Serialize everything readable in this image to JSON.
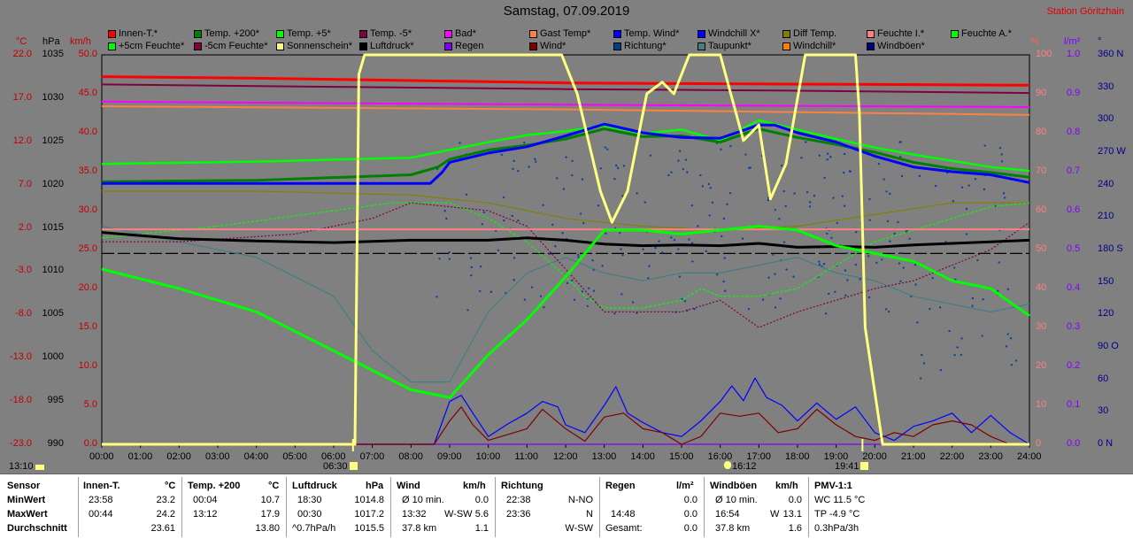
{
  "header": {
    "title": "Samstag, 07.09.2019",
    "station": "Station Göritzhain"
  },
  "axis_headers": {
    "celsius": "°C",
    "hpa": "hPa",
    "kmh": "km/h",
    "percent": "%",
    "lm2": "l/m²",
    "deg": "°"
  },
  "legend": [
    {
      "label": "Innen-T.*",
      "color": "#ff0000"
    },
    {
      "label": "Temp. +200*",
      "color": "#008000"
    },
    {
      "label": "Temp. +5*",
      "color": "#00ff00"
    },
    {
      "label": "Temp. -5*",
      "color": "#800040"
    },
    {
      "label": "Bad*",
      "color": "#ff00ff"
    },
    {
      "label": "Gast Temp*",
      "color": "#ff8040"
    },
    {
      "label": "Temp. Wind*",
      "color": "#0000ff"
    },
    {
      "label": "Windchill X*",
      "color": "#0000ff"
    },
    {
      "label": "Diff Temp.",
      "color": "#808000"
    },
    {
      "label": "Feuchte I.*",
      "color": "#ff8080"
    },
    {
      "label": "Feuchte A.*",
      "color": "#00ff00"
    },
    {
      "label": "+5cm Feuchte*",
      "color": "#00ff00"
    },
    {
      "label": "-5cm Feuchte*",
      "color": "#800040"
    },
    {
      "label": "Sonnenschein*",
      "color": "#ffff80"
    },
    {
      "label": "Luftdruck*",
      "color": "#000000"
    },
    {
      "label": "Regen",
      "color": "#8000ff"
    },
    {
      "label": "Wind*",
      "color": "#800000"
    },
    {
      "label": "Richtung*",
      "color": "#004080"
    },
    {
      "label": "Taupunkt*",
      "color": "#408080"
    },
    {
      "label": "Windchill*",
      "color": "#ff8000"
    },
    {
      "label": "Windböen*",
      "color": "#000080"
    }
  ],
  "chart_data": {
    "type": "line",
    "title": "Samstag, 07.09.2019",
    "x_ticks": [
      "00:00",
      "01:00",
      "02:00",
      "03:00",
      "04:00",
      "05:00",
      "06:00",
      "07:00",
      "08:00",
      "09:00",
      "10:00",
      "11:00",
      "12:00",
      "13:00",
      "14:00",
      "15:00",
      "16:00",
      "17:00",
      "18:00",
      "19:00",
      "20:00",
      "21:00",
      "22:00",
      "23:00",
      "24:00"
    ],
    "xlim": [
      0,
      24
    ],
    "axes": {
      "celsius": {
        "ticks": [
          "22.0",
          "17.0",
          "12.0",
          "7.0",
          "2.0",
          "-3.0",
          "-8.0",
          "-13.0",
          "-18.0",
          "-23.0"
        ],
        "ylim": [
          -23,
          27
        ]
      },
      "hpa": {
        "ticks": [
          "1035",
          "1030",
          "1025",
          "1020",
          "1015",
          "1010",
          "1005",
          "1000",
          "995",
          "990"
        ],
        "ylim": [
          990,
          1040
        ]
      },
      "kmh": {
        "ticks": [
          "50.0",
          "45.0",
          "40.0",
          "35.0",
          "30.0",
          "25.0",
          "20.0",
          "15.0",
          "10.0",
          "5.0",
          "0.0"
        ],
        "ylim": [
          0,
          50
        ]
      },
      "percent": {
        "ticks": [
          "100",
          "90",
          "80",
          "70",
          "60",
          "50",
          "40",
          "30",
          "20",
          "10",
          "0"
        ],
        "ylim": [
          0,
          100
        ]
      },
      "lm2": {
        "ticks": [
          "1.0",
          "0.9",
          "0.8",
          "0.7",
          "0.6",
          "0.5",
          "0.4",
          "0.3",
          "0.2",
          "0.1",
          "0.0"
        ],
        "ylim": [
          0,
          1
        ]
      },
      "deg": {
        "ticks": [
          "360 N",
          "330",
          "300",
          "270 W",
          "240",
          "210",
          "180 S",
          "150",
          "120",
          "90 O",
          "60",
          "30",
          "0 N"
        ],
        "ylim": [
          0,
          360
        ]
      }
    },
    "sun": {
      "sunrise": "06:30",
      "sunset": "19:41",
      "transit": "16:12"
    },
    "series": [
      {
        "name": "Innen-T.*",
        "axis": "celsius",
        "x": [
          0,
          4,
          8,
          12,
          16,
          20,
          24
        ],
        "values": [
          24.2,
          24.0,
          23.7,
          23.4,
          23.3,
          23.2,
          23.1
        ]
      },
      {
        "name": "Temp. -5*",
        "axis": "celsius",
        "x": [
          0,
          6,
          12,
          18,
          24
        ],
        "values": [
          23.2,
          22.9,
          22.6,
          22.4,
          22.1
        ]
      },
      {
        "name": "Bad*",
        "axis": "celsius",
        "x": [
          0,
          12,
          24
        ],
        "values": [
          21.0,
          20.6,
          20.3
        ]
      },
      {
        "name": "Gast Temp*",
        "axis": "celsius",
        "x": [
          0,
          12,
          24
        ],
        "values": [
          20.4,
          20.0,
          19.3
        ]
      },
      {
        "name": "Temp. +200*",
        "axis": "celsius",
        "x": [
          0,
          4,
          8,
          8.7,
          9,
          10,
          11,
          12,
          13,
          14,
          15,
          16,
          17,
          18,
          19,
          20,
          21,
          22,
          23,
          24
        ],
        "values": [
          10.7,
          10.9,
          11.6,
          12.6,
          13.6,
          14.8,
          15.4,
          16.2,
          17.5,
          16.5,
          16.6,
          15.8,
          17.5,
          16.4,
          15.5,
          14.5,
          13.2,
          12.4,
          11.9,
          11.3
        ]
      },
      {
        "name": "Temp. Wind*",
        "axis": "celsius",
        "x": [
          0,
          8.5,
          8.8,
          9,
          10,
          11,
          12,
          13,
          13.2,
          14,
          15,
          16,
          17,
          17.4,
          18,
          19,
          20,
          21,
          22,
          23,
          24
        ],
        "values": [
          10.5,
          10.5,
          11.9,
          13.2,
          14.4,
          15.2,
          16.6,
          18.1,
          17.9,
          17.0,
          16.4,
          16.3,
          18.0,
          18.0,
          17.0,
          15.8,
          14.0,
          12.6,
          12.0,
          11.6,
          10.6
        ]
      },
      {
        "name": "Temp. +5*",
        "axis": "celsius",
        "x": [
          0,
          4,
          8,
          9,
          10,
          11,
          12,
          13,
          14,
          15,
          16,
          17,
          18,
          19,
          20,
          21,
          22,
          23,
          24
        ],
        "values": [
          13.0,
          13.3,
          13.8,
          14.8,
          15.8,
          16.7,
          17.2,
          17.9,
          16.9,
          17.4,
          16.0,
          18.6,
          17.4,
          16.2,
          15.1,
          14.2,
          13.4,
          12.6,
          12.1
        ]
      },
      {
        "name": "Luftdruck*",
        "axis": "hpa",
        "x": [
          0,
          2,
          4,
          6,
          8,
          10,
          11,
          12,
          13,
          14,
          15,
          16,
          17,
          18,
          19,
          20,
          21,
          22,
          23,
          24
        ],
        "values": [
          1017.2,
          1016.4,
          1016.1,
          1015.9,
          1016.2,
          1016.2,
          1016.5,
          1016.2,
          1015.7,
          1015.5,
          1015.6,
          1015.5,
          1015.8,
          1015.3,
          1015.4,
          1015.3,
          1015.6,
          1015.8,
          1016.0,
          1016.2
        ]
      },
      {
        "name": "Feuchte I.*",
        "axis": "percent",
        "x": [
          0,
          24
        ],
        "values": [
          55.2,
          55.2
        ]
      },
      {
        "name": "Feuchte A.*",
        "axis": "percent",
        "x": [
          0,
          2,
          4,
          6,
          8,
          9,
          10,
          11,
          12,
          13,
          14,
          15,
          16,
          17,
          18,
          19,
          20,
          21,
          22,
          23,
          24
        ],
        "values": [
          45,
          40,
          34,
          24,
          14,
          12,
          23,
          32,
          43,
          55,
          55,
          54,
          55,
          56,
          55,
          51,
          49,
          47,
          42,
          40,
          33
        ]
      },
      {
        "name": "Sonnenschein*",
        "axis": "percent",
        "x": [
          0,
          6.55,
          6.65,
          6.8,
          7.3,
          11.9,
          12.3,
          12.9,
          13.2,
          13.6,
          14.1,
          14.5,
          14.8,
          15.2,
          15.6,
          16.0,
          16.6,
          17.0,
          17.3,
          17.7,
          18.2,
          19.5,
          19.6,
          19.75,
          20.2,
          24
        ],
        "values": [
          0,
          0,
          95,
          100,
          100,
          100,
          90,
          65,
          57,
          65,
          90,
          93,
          90,
          100,
          100,
          100,
          78,
          82,
          63,
          72,
          100,
          100,
          85,
          30,
          0,
          0
        ]
      },
      {
        "name": "Wind*",
        "axis": "kmh",
        "x": [
          0,
          8.6,
          9,
          9.3,
          9.6,
          10,
          11,
          11.4,
          12,
          12.5,
          13,
          13.5,
          14,
          14.5,
          15,
          15.5,
          16,
          16.5,
          17,
          17.5,
          18,
          18.5,
          19,
          19.5,
          20,
          20.5,
          21,
          21.5,
          22,
          22.5,
          23,
          23.5,
          24
        ],
        "values": [
          0,
          0,
          3,
          4.8,
          2.5,
          0.5,
          2,
          4.5,
          2,
          0.4,
          3.5,
          4,
          2,
          1.5,
          0,
          1,
          4,
          3.6,
          4,
          1.5,
          2,
          4.5,
          2.5,
          1,
          0.5,
          1.5,
          1,
          2.5,
          3,
          2.5,
          1,
          0,
          0
        ]
      },
      {
        "name": "Windböen*",
        "axis": "kmh",
        "x": [
          0,
          8.6,
          9,
          9.3,
          9.6,
          10,
          10.5,
          11,
          11.4,
          11.8,
          12,
          12.5,
          13,
          13.3,
          13.6,
          14,
          14.5,
          15,
          15.5,
          16,
          16.3,
          16.6,
          16.9,
          17.2,
          17.6,
          18,
          18.5,
          19,
          19.5,
          20,
          20.5,
          21,
          21.5,
          22,
          22.5,
          23,
          23.5,
          24
        ],
        "values": [
          0,
          0,
          5.5,
          6.3,
          4,
          1,
          2.6,
          4,
          5.5,
          4.8,
          2.5,
          1.5,
          5,
          7.4,
          4,
          2.8,
          1.5,
          1,
          3,
          5.5,
          7.5,
          5.6,
          8.5,
          6,
          5,
          3,
          5.3,
          3.2,
          4.8,
          1.5,
          0.5,
          2.3,
          3,
          4,
          1.5,
          3.7,
          1.5,
          0
        ]
      },
      {
        "name": "Taupunkt*",
        "axis": "celsius",
        "x": [
          0,
          2,
          4,
          6,
          7,
          8,
          9,
          10,
          11,
          12,
          13,
          14,
          15,
          16,
          17,
          18,
          19,
          20,
          21,
          22,
          23,
          24
        ],
        "values": [
          5,
          3,
          1,
          -4,
          -11,
          -15,
          -15,
          -6,
          -1,
          1,
          -1,
          -2,
          -1,
          -1,
          0,
          1,
          -1,
          -2,
          -4,
          -5,
          -6,
          -5
        ]
      },
      {
        "name": "+5cm Feuchte*",
        "axis": "percent",
        "x": [
          0,
          3,
          6,
          7.5,
          9,
          10,
          11,
          12,
          12.5,
          13,
          14,
          15,
          15.5,
          16,
          17,
          18,
          19,
          20,
          21,
          22,
          23,
          24
        ],
        "values": [
          53,
          56,
          60,
          62,
          62,
          58,
          52,
          43,
          38,
          35,
          35,
          37,
          40,
          38,
          38,
          40,
          46,
          52,
          55,
          58,
          61,
          62
        ]
      },
      {
        "name": "-5cm Feuchte*",
        "axis": "percent",
        "x": [
          0,
          2,
          5,
          7,
          8,
          9,
          10,
          11,
          12,
          13,
          14,
          15,
          16,
          17,
          18,
          19,
          20,
          21,
          22,
          23,
          24
        ],
        "values": [
          52,
          52,
          54,
          58,
          62,
          61,
          60,
          56,
          45,
          34,
          34,
          34,
          37,
          30,
          34,
          37,
          40,
          42,
          46,
          50,
          57
        ]
      },
      {
        "name": "Diff Temp.",
        "axis": "percent",
        "x": [
          0,
          4,
          8,
          10,
          12,
          14,
          16,
          18,
          20,
          22,
          24
        ],
        "values": [
          65,
          65,
          64,
          62,
          58,
          56,
          55,
          56,
          59,
          62,
          62
        ]
      },
      {
        "name": "Regen",
        "axis": "lm2",
        "x": [
          0,
          24
        ],
        "values": [
          0,
          0
        ]
      }
    ]
  },
  "time_labels": {
    "sunrise": "06:30",
    "transit": "16:12",
    "sunset": "19:41"
  },
  "stats": {
    "sensor": {
      "header": "Sensor",
      "min": "MinWert",
      "max": "MaxWert",
      "avg": "Durchschnitt"
    },
    "innen": {
      "header": "Innen-T.",
      "unit": "°C",
      "min_time": "23:58",
      "min_val": "23.2",
      "max_time": "00:44",
      "max_val": "24.2",
      "avg": "23.61"
    },
    "temp200": {
      "header": "Temp. +200",
      "unit": "°C",
      "min_time": "00:04",
      "min_val": "10.7",
      "max_time": "13:12",
      "max_val": "17.9",
      "avg": "13.80"
    },
    "luftdruck": {
      "header": "Luftdruck",
      "unit": "hPa",
      "min_time": "18:30",
      "min_val": "1014.8",
      "max_time": "00:30",
      "max_val": "1017.2",
      "avg_label": "^0.7hPa/h",
      "avg": "1015.5"
    },
    "wind": {
      "header": "Wind",
      "unit": "km/h",
      "min_time": "Ø 10 min.",
      "min_val": "0.0",
      "max_time": "13:32",
      "max_dir": "W-SW",
      "max_val": "5.6",
      "avg_label": "37.8 km",
      "avg": "1.1"
    },
    "richtung": {
      "header": "Richtung",
      "min_time": "22:38",
      "min_val": "N-NO",
      "max_time": "23:36",
      "max_val": "N",
      "avg": "W-SW"
    },
    "regen": {
      "header": "Regen",
      "unit": "l/m²",
      "min_val": "0.0",
      "max_time": "14:48",
      "max_val": "0.0",
      "avg_label": "Gesamt:",
      "avg": "0.0"
    },
    "boeen": {
      "header": "Windböen",
      "unit": "km/h",
      "min_time": "Ø 10 min.",
      "min_val": "0.0",
      "max_time": "16:54",
      "max_dir": "W",
      "max_val": "13.1",
      "avg_label": "37.8 km",
      "avg": "1.6"
    },
    "pmv": {
      "header": "PMV-1:1",
      "min": "WC 11.5 °C",
      "max": "TP -4.9 °C",
      "avg": "0.3hPa/3h"
    }
  },
  "taskbar": {
    "time": "13:10"
  }
}
